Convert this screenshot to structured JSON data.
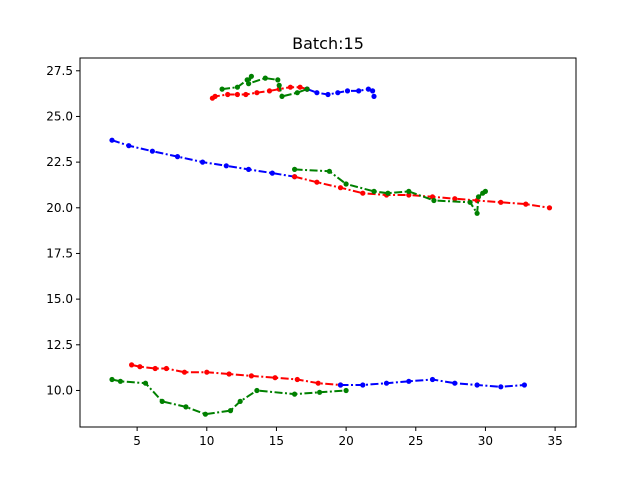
{
  "chart_data": {
    "type": "line",
    "title": "Batch:15",
    "xlabel": "",
    "ylabel": "",
    "xlim": [
      0.9,
      36.5
    ],
    "ylim": [
      8.0,
      28.2
    ],
    "x_ticks": [
      5,
      10,
      15,
      20,
      25,
      30,
      35
    ],
    "x_tick_labels": [
      "5",
      "10",
      "15",
      "20",
      "25",
      "30",
      "35"
    ],
    "y_ticks": [
      10.0,
      12.5,
      15.0,
      17.5,
      20.0,
      22.5,
      25.0,
      27.5
    ],
    "y_tick_labels": [
      "10.0",
      "12.5",
      "15.0",
      "17.5",
      "20.0",
      "22.5",
      "25.0",
      "27.5"
    ],
    "grid": false,
    "legend": "none",
    "series": [
      {
        "color": "#0000ff",
        "style": "dash-dot",
        "points": [
          [
            3.2,
            23.7
          ],
          [
            4.4,
            23.4
          ],
          [
            6.1,
            23.1
          ],
          [
            7.9,
            22.8
          ],
          [
            9.7,
            22.5
          ],
          [
            11.4,
            22.3
          ],
          [
            13.0,
            22.1
          ],
          [
            14.7,
            21.9
          ],
          [
            16.3,
            21.7
          ]
        ]
      },
      {
        "color": "#ff0000",
        "style": "dash-dot",
        "points": [
          [
            16.3,
            21.7
          ],
          [
            17.9,
            21.4
          ],
          [
            19.6,
            21.1
          ],
          [
            21.2,
            20.8
          ],
          [
            22.9,
            20.7
          ],
          [
            24.5,
            20.7
          ],
          [
            26.2,
            20.6
          ],
          [
            27.8,
            20.5
          ],
          [
            29.4,
            20.4
          ],
          [
            31.1,
            20.3
          ],
          [
            32.9,
            20.2
          ],
          [
            34.6,
            20.0
          ]
        ]
      },
      {
        "color": "#008000",
        "style": "dash-dot",
        "points": [
          [
            16.3,
            22.1
          ],
          [
            18.8,
            22.0
          ],
          [
            20.0,
            21.3
          ],
          [
            22.0,
            20.9
          ],
          [
            23.0,
            20.8
          ],
          [
            24.5,
            20.9
          ],
          [
            26.3,
            20.4
          ],
          [
            28.9,
            20.3
          ],
          [
            29.4,
            19.7
          ],
          [
            29.5,
            20.6
          ],
          [
            29.8,
            20.8
          ],
          [
            30.0,
            20.9
          ]
        ]
      },
      {
        "color": "#ff0000",
        "style": "dash-dot",
        "points": [
          [
            4.6,
            11.4
          ],
          [
            5.2,
            11.3
          ],
          [
            6.3,
            11.2
          ],
          [
            7.1,
            11.2
          ],
          [
            8.4,
            11.0
          ],
          [
            10.0,
            11.0
          ],
          [
            11.6,
            10.9
          ],
          [
            13.2,
            10.8
          ],
          [
            14.9,
            10.7
          ],
          [
            16.5,
            10.6
          ],
          [
            18.0,
            10.4
          ],
          [
            19.6,
            10.3
          ]
        ]
      },
      {
        "color": "#0000ff",
        "style": "dash-dot",
        "points": [
          [
            19.6,
            10.3
          ],
          [
            21.2,
            10.3
          ],
          [
            22.9,
            10.4
          ],
          [
            24.5,
            10.5
          ],
          [
            26.2,
            10.6
          ],
          [
            27.8,
            10.4
          ],
          [
            29.4,
            10.3
          ],
          [
            31.1,
            10.2
          ],
          [
            32.8,
            10.3
          ]
        ]
      },
      {
        "color": "#008000",
        "style": "dash-dot",
        "points": [
          [
            3.2,
            10.6
          ],
          [
            3.8,
            10.5
          ],
          [
            5.6,
            10.4
          ],
          [
            6.8,
            9.4
          ],
          [
            8.5,
            9.1
          ],
          [
            9.9,
            8.7
          ],
          [
            11.7,
            8.9
          ],
          [
            12.4,
            9.4
          ],
          [
            13.6,
            10.0
          ],
          [
            16.3,
            9.8
          ],
          [
            18.1,
            9.9
          ],
          [
            20.0,
            10.0
          ]
        ]
      },
      {
        "color": "#ff0000",
        "style": "dash-dot",
        "points": [
          [
            10.4,
            26.0
          ],
          [
            10.6,
            26.1
          ],
          [
            11.5,
            26.2
          ],
          [
            12.2,
            26.2
          ],
          [
            12.8,
            26.2
          ],
          [
            13.6,
            26.3
          ],
          [
            14.5,
            26.4
          ],
          [
            15.2,
            26.5
          ],
          [
            16.0,
            26.6
          ],
          [
            16.7,
            26.6
          ],
          [
            17.2,
            26.5
          ]
        ]
      },
      {
        "color": "#0000ff",
        "style": "dash-dot",
        "points": [
          [
            17.2,
            26.5
          ],
          [
            17.9,
            26.3
          ],
          [
            18.7,
            26.2
          ],
          [
            19.4,
            26.3
          ],
          [
            20.1,
            26.4
          ],
          [
            20.9,
            26.4
          ],
          [
            21.6,
            26.5
          ],
          [
            21.9,
            26.4
          ],
          [
            22.0,
            26.1
          ]
        ]
      },
      {
        "color": "#008000",
        "style": "dash-dot",
        "points": [
          [
            11.1,
            26.5
          ],
          [
            12.2,
            26.6
          ],
          [
            12.9,
            27.0
          ],
          [
            13.2,
            27.2
          ],
          [
            13.0,
            26.8
          ],
          [
            14.2,
            27.1
          ],
          [
            15.1,
            27.0
          ],
          [
            15.2,
            26.7
          ],
          [
            15.4,
            26.1
          ],
          [
            16.5,
            26.3
          ],
          [
            17.2,
            26.5
          ]
        ]
      }
    ]
  }
}
